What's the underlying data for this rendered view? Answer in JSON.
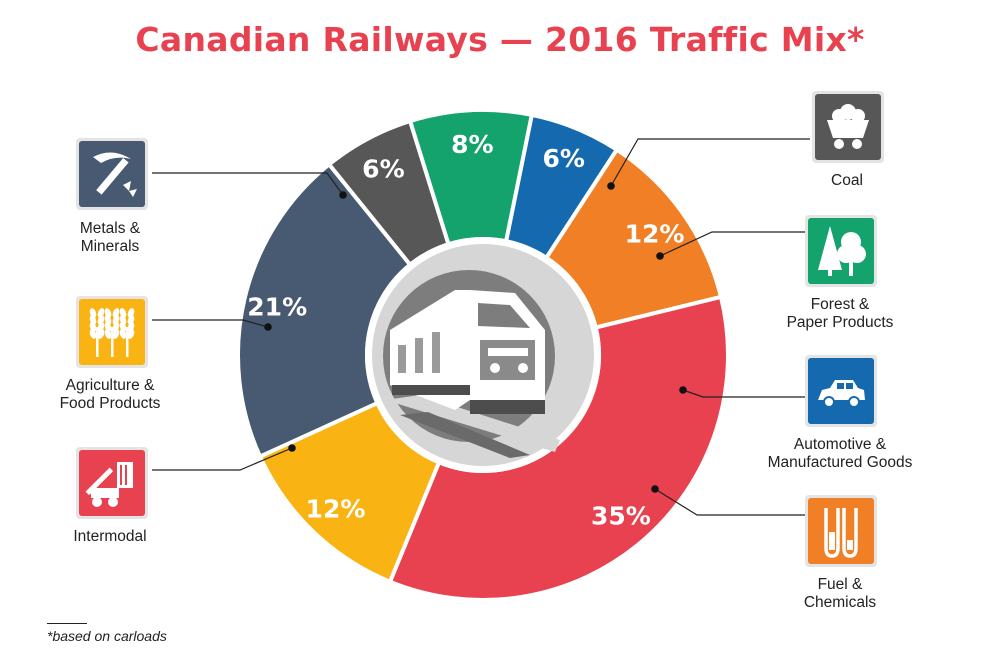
{
  "page": {
    "title": "Canadian Railways — 2016 Traffic Mix*",
    "title_color": "#e8414f",
    "footnote": "*based on carloads"
  },
  "chart_data": {
    "type": "pie",
    "title": "Canadian Railways — 2016 Traffic Mix*",
    "series": [
      {
        "name": "Metals & Minerals",
        "value": 21,
        "label": "21%",
        "color": "#475a72",
        "icon": "pickaxe-icon"
      },
      {
        "name": "Coal",
        "value": 6,
        "label": "6%",
        "color": "#575757",
        "icon": "coal-cart-icon"
      },
      {
        "name": "Forest & Paper Products",
        "value": 8,
        "label": "8%",
        "color": "#14a26d",
        "icon": "trees-icon"
      },
      {
        "name": "Automotive & Manufactured Goods",
        "value": 6,
        "label": "6%",
        "color": "#1569ae",
        "icon": "car-icon"
      },
      {
        "name": "Fuel & Chemicals",
        "value": 12,
        "label": "12%",
        "color": "#f07f26",
        "icon": "test-tubes-icon"
      },
      {
        "name": "Intermodal",
        "value": 35,
        "label": "35%",
        "color": "#e8414f",
        "icon": "reach-stacker-icon"
      },
      {
        "name": "Agriculture & Food Products",
        "value": 12,
        "label": "12%",
        "color": "#f9b312",
        "icon": "wheat-icon"
      }
    ],
    "center_icon": "locomotive-icon",
    "legend_placement": "around"
  }
}
